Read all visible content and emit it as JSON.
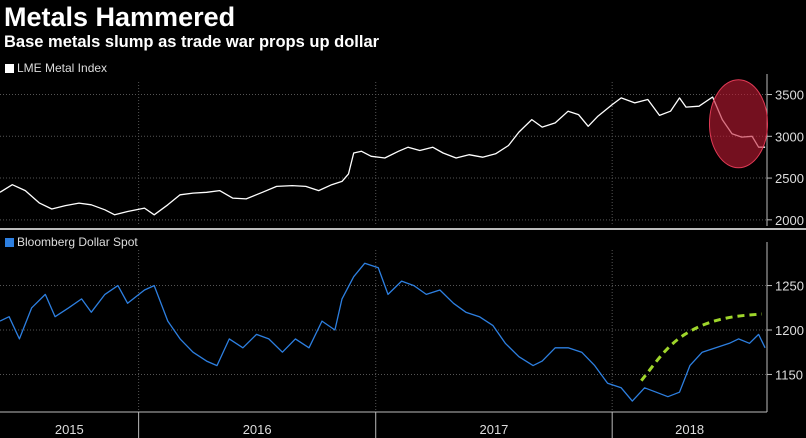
{
  "header": {
    "title": "Metals Hammered",
    "subtitle": "Base metals slump as trade war props up dollar"
  },
  "colors": {
    "background": "#000000",
    "lme_line": "#ffffff",
    "dollar_line": "#2d7fe0",
    "highlight_circle": "#c21a34",
    "trend_dash": "#9fd62b",
    "grid": "#555555",
    "divider": "#bbbbbb"
  },
  "chart_data": [
    {
      "type": "line",
      "legend": "LME Metal Index",
      "ylim": [
        1950,
        3650
      ],
      "yticks": [
        2000,
        2500,
        3000,
        3500
      ],
      "x_range": [
        "2015-06",
        "2018-08"
      ],
      "grid": true,
      "annotation": "red circle highlighting the 2018 decline",
      "series": [
        {
          "name": "LME Metal Index",
          "points": [
            [
              "2015-06-01",
              2330
            ],
            [
              "2015-06-20",
              2420
            ],
            [
              "2015-07-10",
              2350
            ],
            [
              "2015-08-01",
              2200
            ],
            [
              "2015-08-20",
              2130
            ],
            [
              "2015-09-10",
              2170
            ],
            [
              "2015-10-01",
              2200
            ],
            [
              "2015-10-20",
              2180
            ],
            [
              "2015-11-10",
              2120
            ],
            [
              "2015-11-25",
              2060
            ],
            [
              "2015-12-15",
              2100
            ],
            [
              "2016-01-10",
              2140
            ],
            [
              "2016-01-25",
              2060
            ],
            [
              "2016-02-15",
              2180
            ],
            [
              "2016-03-05",
              2300
            ],
            [
              "2016-03-25",
              2320
            ],
            [
              "2016-04-15",
              2330
            ],
            [
              "2016-05-05",
              2350
            ],
            [
              "2016-05-25",
              2260
            ],
            [
              "2016-06-15",
              2250
            ],
            [
              "2016-07-10",
              2330
            ],
            [
              "2016-08-01",
              2400
            ],
            [
              "2016-08-25",
              2410
            ],
            [
              "2016-09-15",
              2400
            ],
            [
              "2016-10-05",
              2350
            ],
            [
              "2016-10-25",
              2420
            ],
            [
              "2016-11-10",
              2460
            ],
            [
              "2016-11-20",
              2550
            ],
            [
              "2016-11-28",
              2800
            ],
            [
              "2016-12-10",
              2820
            ],
            [
              "2016-12-25",
              2760
            ],
            [
              "2017-01-15",
              2740
            ],
            [
              "2017-02-05",
              2820
            ],
            [
              "2017-02-20",
              2870
            ],
            [
              "2017-03-10",
              2830
            ],
            [
              "2017-03-30",
              2870
            ],
            [
              "2017-04-15",
              2800
            ],
            [
              "2017-05-05",
              2740
            ],
            [
              "2017-05-25",
              2780
            ],
            [
              "2017-06-15",
              2750
            ],
            [
              "2017-07-05",
              2790
            ],
            [
              "2017-07-25",
              2890
            ],
            [
              "2017-08-10",
              3050
            ],
            [
              "2017-08-30",
              3200
            ],
            [
              "2017-09-15",
              3110
            ],
            [
              "2017-10-05",
              3160
            ],
            [
              "2017-10-25",
              3300
            ],
            [
              "2017-11-10",
              3260
            ],
            [
              "2017-11-25",
              3120
            ],
            [
              "2017-12-10",
              3240
            ],
            [
              "2018-01-01",
              3380
            ],
            [
              "2018-01-15",
              3460
            ],
            [
              "2018-02-05",
              3400
            ],
            [
              "2018-02-25",
              3440
            ],
            [
              "2018-03-15",
              3250
            ],
            [
              "2018-04-01",
              3300
            ],
            [
              "2018-04-15",
              3460
            ],
            [
              "2018-04-25",
              3350
            ],
            [
              "2018-05-15",
              3360
            ],
            [
              "2018-06-05",
              3470
            ],
            [
              "2018-06-20",
              3200
            ],
            [
              "2018-07-05",
              3030
            ],
            [
              "2018-07-20",
              2990
            ],
            [
              "2018-08-05",
              3000
            ],
            [
              "2018-08-15",
              2870
            ],
            [
              "2018-08-25",
              2870
            ]
          ]
        }
      ]
    },
    {
      "type": "line",
      "legend": "Bloomberg Dollar Spot",
      "ylim": [
        1110,
        1290
      ],
      "yticks": [
        1150,
        1200,
        1250
      ],
      "x_range": [
        "2015-06",
        "2018-08"
      ],
      "xticks": [
        "2015",
        "2016",
        "2017",
        "2018"
      ],
      "grid": true,
      "annotation": "green dashed curve trending upward through 2018",
      "series": [
        {
          "name": "Bloomberg Dollar Spot",
          "points": [
            [
              "2015-06-01",
              1210
            ],
            [
              "2015-06-15",
              1215
            ],
            [
              "2015-07-01",
              1190
            ],
            [
              "2015-07-20",
              1225
            ],
            [
              "2015-08-10",
              1240
            ],
            [
              "2015-08-25",
              1215
            ],
            [
              "2015-09-15",
              1225
            ],
            [
              "2015-10-05",
              1235
            ],
            [
              "2015-10-20",
              1220
            ],
            [
              "2015-11-10",
              1240
            ],
            [
              "2015-11-30",
              1250
            ],
            [
              "2015-12-15",
              1230
            ],
            [
              "2016-01-10",
              1245
            ],
            [
              "2016-01-25",
              1250
            ],
            [
              "2016-02-15",
              1210
            ],
            [
              "2016-03-05",
              1190
            ],
            [
              "2016-03-25",
              1175
            ],
            [
              "2016-04-15",
              1165
            ],
            [
              "2016-05-01",
              1160
            ],
            [
              "2016-05-20",
              1190
            ],
            [
              "2016-06-10",
              1180
            ],
            [
              "2016-07-01",
              1195
            ],
            [
              "2016-07-20",
              1190
            ],
            [
              "2016-08-10",
              1175
            ],
            [
              "2016-08-30",
              1190
            ],
            [
              "2016-09-20",
              1180
            ],
            [
              "2016-10-10",
              1210
            ],
            [
              "2016-10-30",
              1200
            ],
            [
              "2016-11-10",
              1235
            ],
            [
              "2016-11-28",
              1260
            ],
            [
              "2016-12-15",
              1275
            ],
            [
              "2017-01-05",
              1270
            ],
            [
              "2017-01-20",
              1240
            ],
            [
              "2017-02-10",
              1255
            ],
            [
              "2017-03-01",
              1250
            ],
            [
              "2017-03-20",
              1240
            ],
            [
              "2017-04-10",
              1245
            ],
            [
              "2017-05-01",
              1230
            ],
            [
              "2017-05-20",
              1220
            ],
            [
              "2017-06-10",
              1215
            ],
            [
              "2017-07-01",
              1205
            ],
            [
              "2017-07-20",
              1185
            ],
            [
              "2017-08-10",
              1170
            ],
            [
              "2017-09-01",
              1160
            ],
            [
              "2017-09-15",
              1165
            ],
            [
              "2017-10-05",
              1180
            ],
            [
              "2017-10-25",
              1180
            ],
            [
              "2017-11-15",
              1175
            ],
            [
              "2017-12-05",
              1160
            ],
            [
              "2017-12-25",
              1140
            ],
            [
              "2018-01-15",
              1135
            ],
            [
              "2018-02-01",
              1120
            ],
            [
              "2018-02-20",
              1135
            ],
            [
              "2018-03-10",
              1130
            ],
            [
              "2018-03-28",
              1125
            ],
            [
              "2018-04-15",
              1130
            ],
            [
              "2018-05-01",
              1160
            ],
            [
              "2018-05-20",
              1175
            ],
            [
              "2018-06-10",
              1180
            ],
            [
              "2018-07-01",
              1185
            ],
            [
              "2018-07-15",
              1190
            ],
            [
              "2018-08-01",
              1185
            ],
            [
              "2018-08-15",
              1195
            ],
            [
              "2018-08-25",
              1180
            ]
          ]
        }
      ],
      "trend_dash": [
        [
          "2018-02-15",
          1143
        ],
        [
          "2018-04-01",
          1185
        ],
        [
          "2018-05-15",
          1205
        ],
        [
          "2018-07-01",
          1215
        ],
        [
          "2018-08-20",
          1218
        ]
      ]
    }
  ]
}
